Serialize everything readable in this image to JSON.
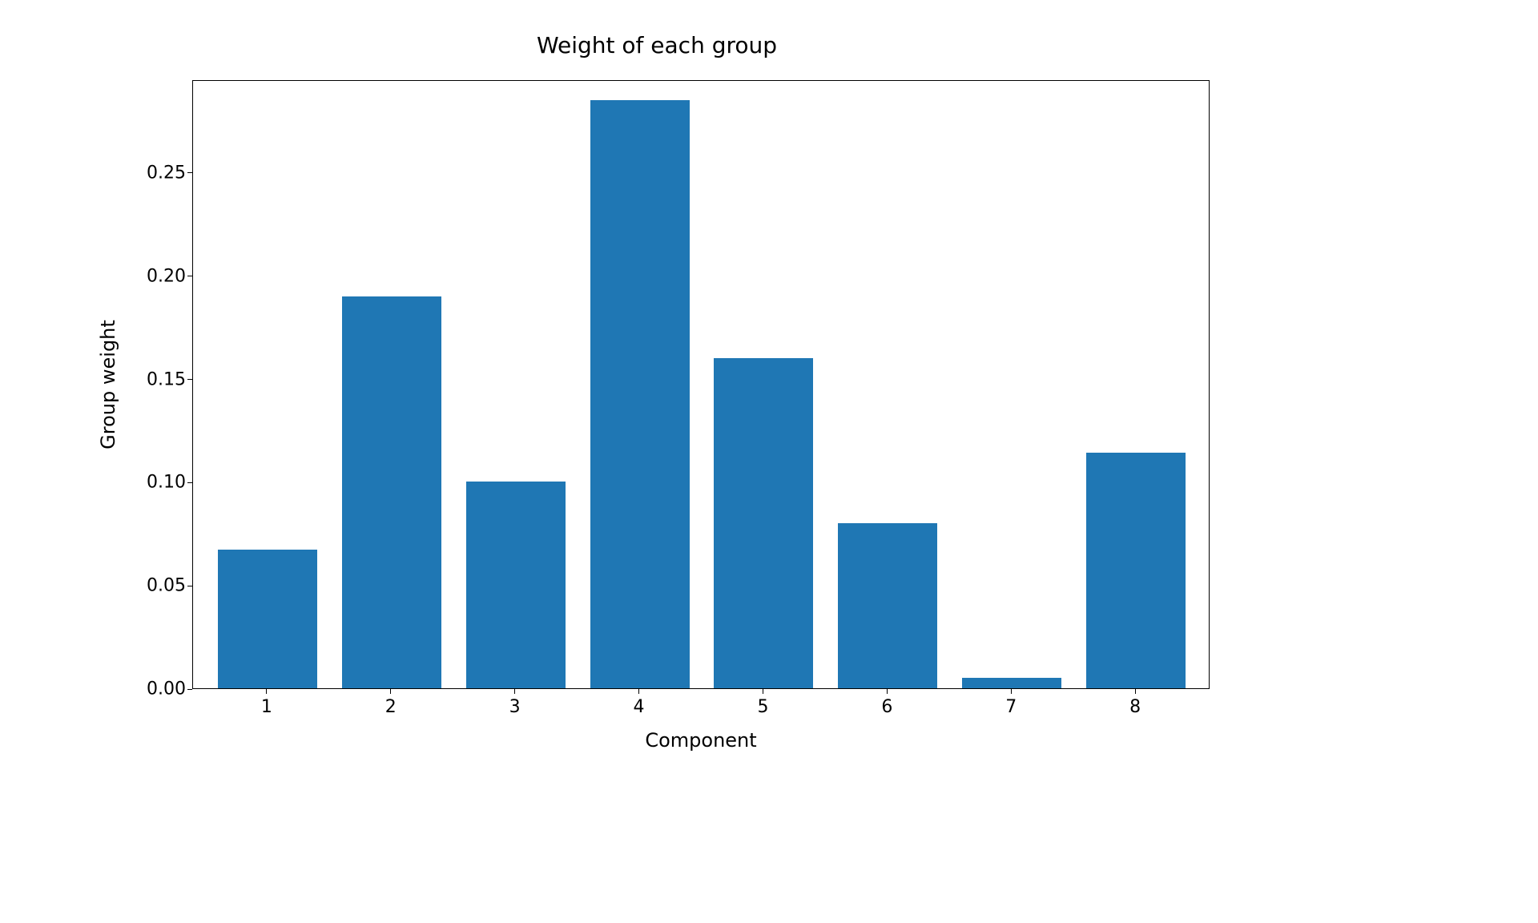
{
  "chart": {
    "type": "bar",
    "title": "Weight of each group",
    "title_fontsize": 28,
    "xlabel": "Component",
    "ylabel": "Group weight",
    "label_fontsize": 24,
    "tick_fontsize": 22,
    "background_color": "#ffffff",
    "border_color": "#000000",
    "text_color": "#000000",
    "categories": [
      "1",
      "2",
      "3",
      "4",
      "5",
      "6",
      "7",
      "8"
    ],
    "values": [
      0.067,
      0.19,
      0.1,
      0.285,
      0.16,
      0.08,
      0.005,
      0.114
    ],
    "bar_color": "#1f77b4",
    "bar_width": 0.8,
    "xlim": [
      0.4,
      8.6
    ],
    "ylim": [
      0.0,
      0.295
    ],
    "yticks": [
      0.0,
      0.05,
      0.1,
      0.15,
      0.2,
      0.25
    ],
    "ytick_labels": [
      "0.00",
      "0.05",
      "0.10",
      "0.15",
      "0.20",
      "0.25"
    ],
    "xticks": [
      1,
      2,
      3,
      4,
      5,
      6,
      7,
      8
    ],
    "xtick_labels": [
      "1",
      "2",
      "3",
      "4",
      "5",
      "6",
      "7",
      "8"
    ],
    "grid": false
  }
}
